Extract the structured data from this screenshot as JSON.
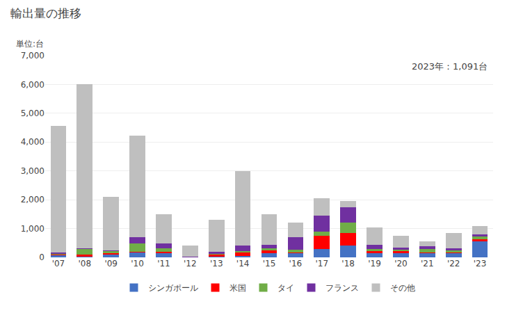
{
  "chart_data": {
    "type": "bar",
    "stacked": true,
    "title": "輸出量の推移",
    "ylabel": "単位:台",
    "annotation": "2023年：1,091台",
    "categories": [
      "'07",
      "'08",
      "'09",
      "'10",
      "'11",
      "'12",
      "'13",
      "'14",
      "'15",
      "'16",
      "'17",
      "'18",
      "'19",
      "'20",
      "'21",
      "'22",
      "'23"
    ],
    "series": [
      {
        "name": "シンガポール",
        "color": "#4472c4",
        "values": [
          80,
          20,
          120,
          180,
          150,
          5,
          30,
          60,
          150,
          150,
          300,
          400,
          150,
          150,
          150,
          150,
          550
        ]
      },
      {
        "name": "米国",
        "color": "#ff0000",
        "values": [
          20,
          80,
          20,
          20,
          40,
          5,
          80,
          100,
          80,
          30,
          450,
          450,
          60,
          80,
          30,
          20,
          80
        ]
      },
      {
        "name": "タイ",
        "color": "#70ad47",
        "values": [
          40,
          200,
          80,
          280,
          120,
          5,
          20,
          60,
          80,
          80,
          150,
          350,
          70,
          40,
          120,
          80,
          100
        ]
      },
      {
        "name": "フランス",
        "color": "#7030a0",
        "values": [
          40,
          20,
          20,
          220,
          180,
          20,
          70,
          180,
          120,
          440,
          550,
          550,
          150,
          70,
          80,
          60,
          70
        ]
      },
      {
        "name": "その他",
        "color": "#bfbfbf",
        "values": [
          4380,
          5680,
          1860,
          3520,
          1010,
          365,
          1100,
          2600,
          1070,
          500,
          600,
          200,
          620,
          410,
          170,
          540,
          291
        ]
      }
    ],
    "ylim": [
      0,
      7000
    ],
    "yticks": [
      0,
      {
        "value": 1000,
        "label": "1,000"
      },
      {
        "value": 2000,
        "label": "2,000"
      },
      {
        "value": 3000,
        "label": "3,000"
      },
      {
        "value": 4000,
        "label": "4,000"
      },
      {
        "value": 5000,
        "label": "5,000"
      },
      {
        "value": 6000,
        "label": "6,000"
      },
      {
        "value": 7000,
        "label": "7,000"
      }
    ],
    "grid": true,
    "legend": "bottom"
  }
}
